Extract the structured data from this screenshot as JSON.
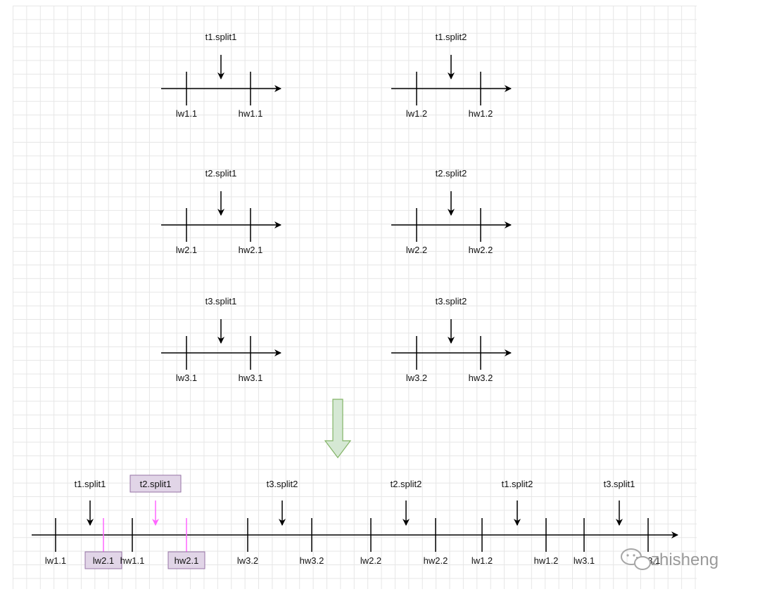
{
  "panels": [
    {
      "split": "t1.split1",
      "low": "lw1.1",
      "high": "hw1.1"
    },
    {
      "split": "t1.split2",
      "low": "lw1.2",
      "high": "hw1.2"
    },
    {
      "split": "t2.split1",
      "low": "lw2.1",
      "high": "hw2.1"
    },
    {
      "split": "t2.split2",
      "low": "lw2.2",
      "high": "hw2.2"
    },
    {
      "split": "t3.split1",
      "low": "lw3.1",
      "high": "hw3.1"
    },
    {
      "split": "t3.split2",
      "low": "lw3.2",
      "high": "hw3.2"
    }
  ],
  "merged": {
    "splits": [
      {
        "label": "t1.split1",
        "highlighted": false
      },
      {
        "label": "t2.split1",
        "highlighted": true
      },
      {
        "label": "t3.split2",
        "highlighted": false
      },
      {
        "label": "t2.split2",
        "highlighted": false
      },
      {
        "label": "t1.split2",
        "highlighted": false
      },
      {
        "label": "t3.split1",
        "highlighted": false
      }
    ],
    "ticks": [
      {
        "label": "lw1.1",
        "highlighted": false
      },
      {
        "label": "lw2.1",
        "highlighted": true
      },
      {
        "label": "hw1.1",
        "highlighted": false
      },
      {
        "label": "hw2.1",
        "highlighted": true
      },
      {
        "label": "lw3.2",
        "highlighted": false
      },
      {
        "label": "hw3.2",
        "highlighted": false
      },
      {
        "label": "lw2.2",
        "highlighted": false
      },
      {
        "label": "hw2.2",
        "highlighted": false
      },
      {
        "label": "lw1.2",
        "highlighted": false
      },
      {
        "label": "hw1.2",
        "highlighted": false
      },
      {
        "label": "lw3.1",
        "highlighted": false
      },
      {
        "label": "hw3.1",
        "highlighted": false
      }
    ]
  },
  "watermark": "zhisheng",
  "colors": {
    "line": "#000000",
    "highlight_fill": "#e1d5e7",
    "highlight_stroke": "#9673a6",
    "highlight_line": "#ff66ff",
    "down_arrow_fill": "#d5e8d4",
    "down_arrow_stroke": "#82b366",
    "watermark": "#9a9a9a"
  }
}
